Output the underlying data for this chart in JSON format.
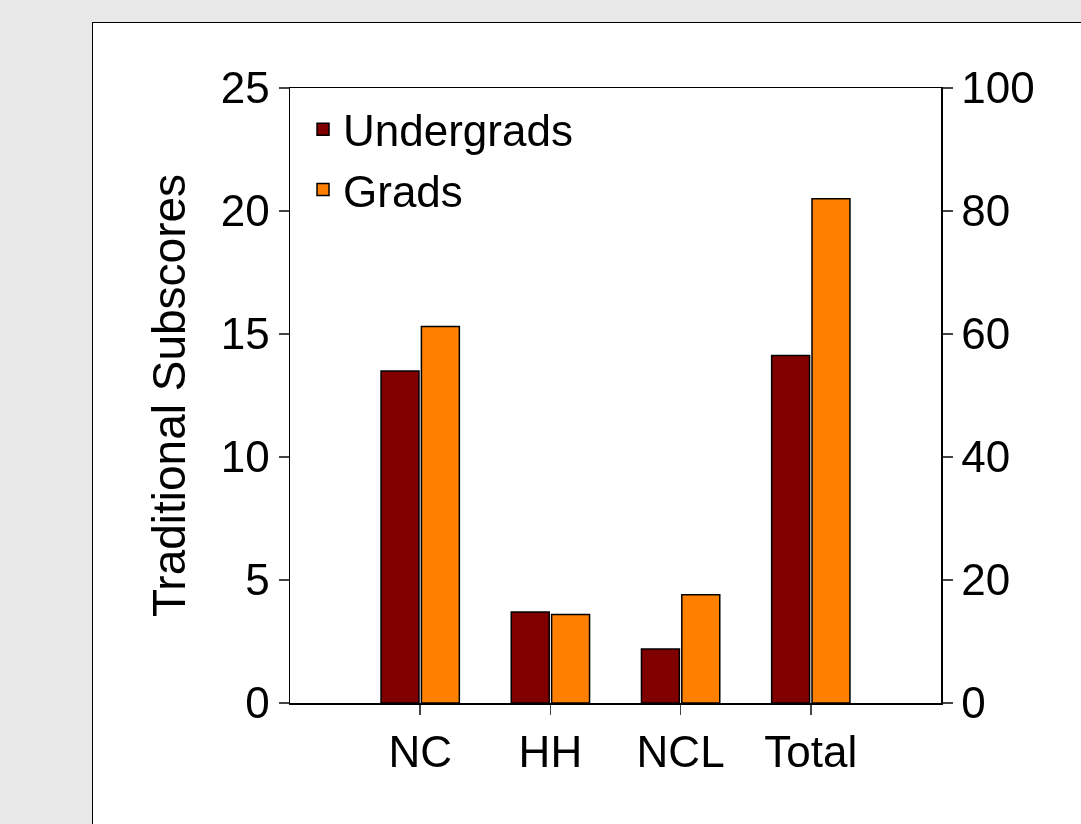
{
  "chart_data": {
    "type": "bar",
    "ylabel": "Traditional Subscores",
    "categories": [
      "NC",
      "HH",
      "NCL",
      "Total"
    ],
    "series": [
      {
        "name": "Undergrads",
        "color": "#800000",
        "values": [
          13.5,
          3.7,
          2.2,
          null
        ]
      },
      {
        "name": "Grads",
        "color": "#ff8000",
        "values": [
          15.3,
          3.6,
          4.4,
          null
        ]
      },
      {
        "color": "#800000",
        "axis": "y2",
        "values": [
          null,
          null,
          null,
          56.5
        ]
      },
      {
        "color": "#ff8000",
        "axis": "y2",
        "values": [
          null,
          null,
          null,
          82
        ]
      }
    ],
    "ylim": [
      0,
      25
    ],
    "yticks": [
      0,
      5,
      10,
      15,
      20,
      25
    ],
    "y2lim": [
      0,
      100
    ],
    "y2ticks": [
      0,
      20,
      40,
      60,
      80,
      100
    ],
    "grid": false,
    "legend": "top left"
  }
}
